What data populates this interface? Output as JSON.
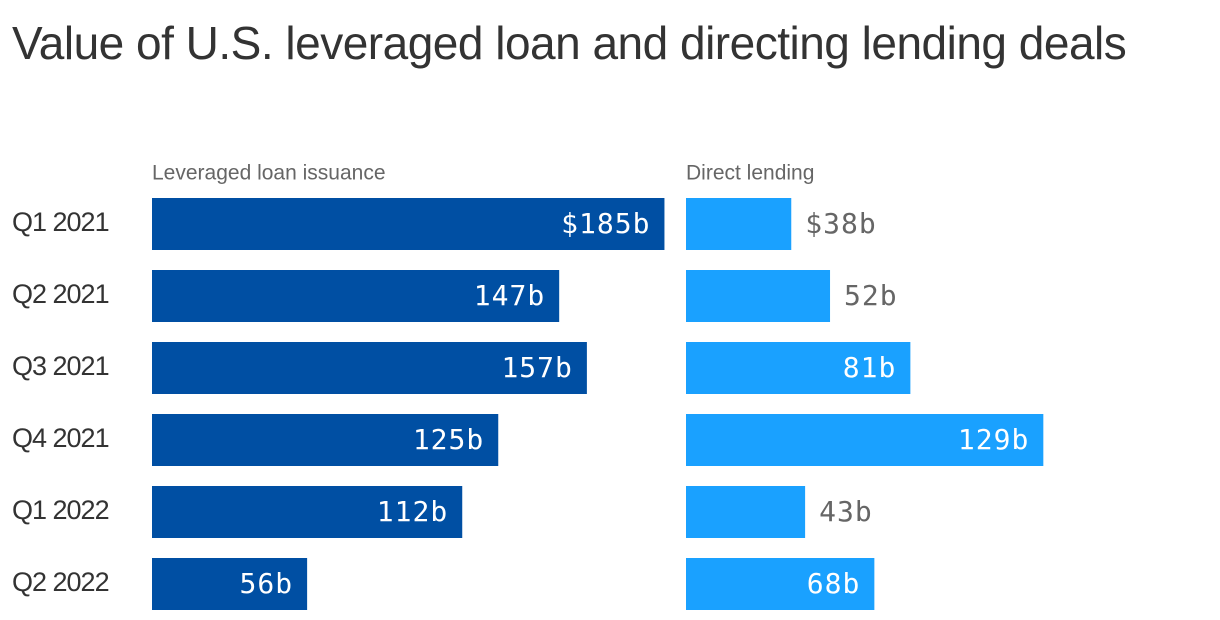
{
  "chart_data": {
    "type": "bar",
    "orientation": "horizontal",
    "title": "Value of U.S. leveraged loan and directing lending deals",
    "categories": [
      "Q1 2021",
      "Q2 2021",
      "Q3 2021",
      "Q4 2021",
      "Q1 2022",
      "Q2 2022"
    ],
    "series": [
      {
        "name": "Leveraged loan issuance",
        "color": "#004fa3",
        "values": [
          185,
          147,
          157,
          125,
          112,
          56
        ],
        "value_labels": [
          "$185b",
          "147b",
          "157b",
          "125b",
          "112b",
          "56b"
        ]
      },
      {
        "name": "Direct lending",
        "color": "#1aa1ff",
        "values": [
          38,
          52,
          81,
          129,
          43,
          68
        ],
        "value_labels": [
          "$38b",
          "52b",
          "81b",
          "129b",
          "43b",
          "68b"
        ]
      }
    ]
  }
}
